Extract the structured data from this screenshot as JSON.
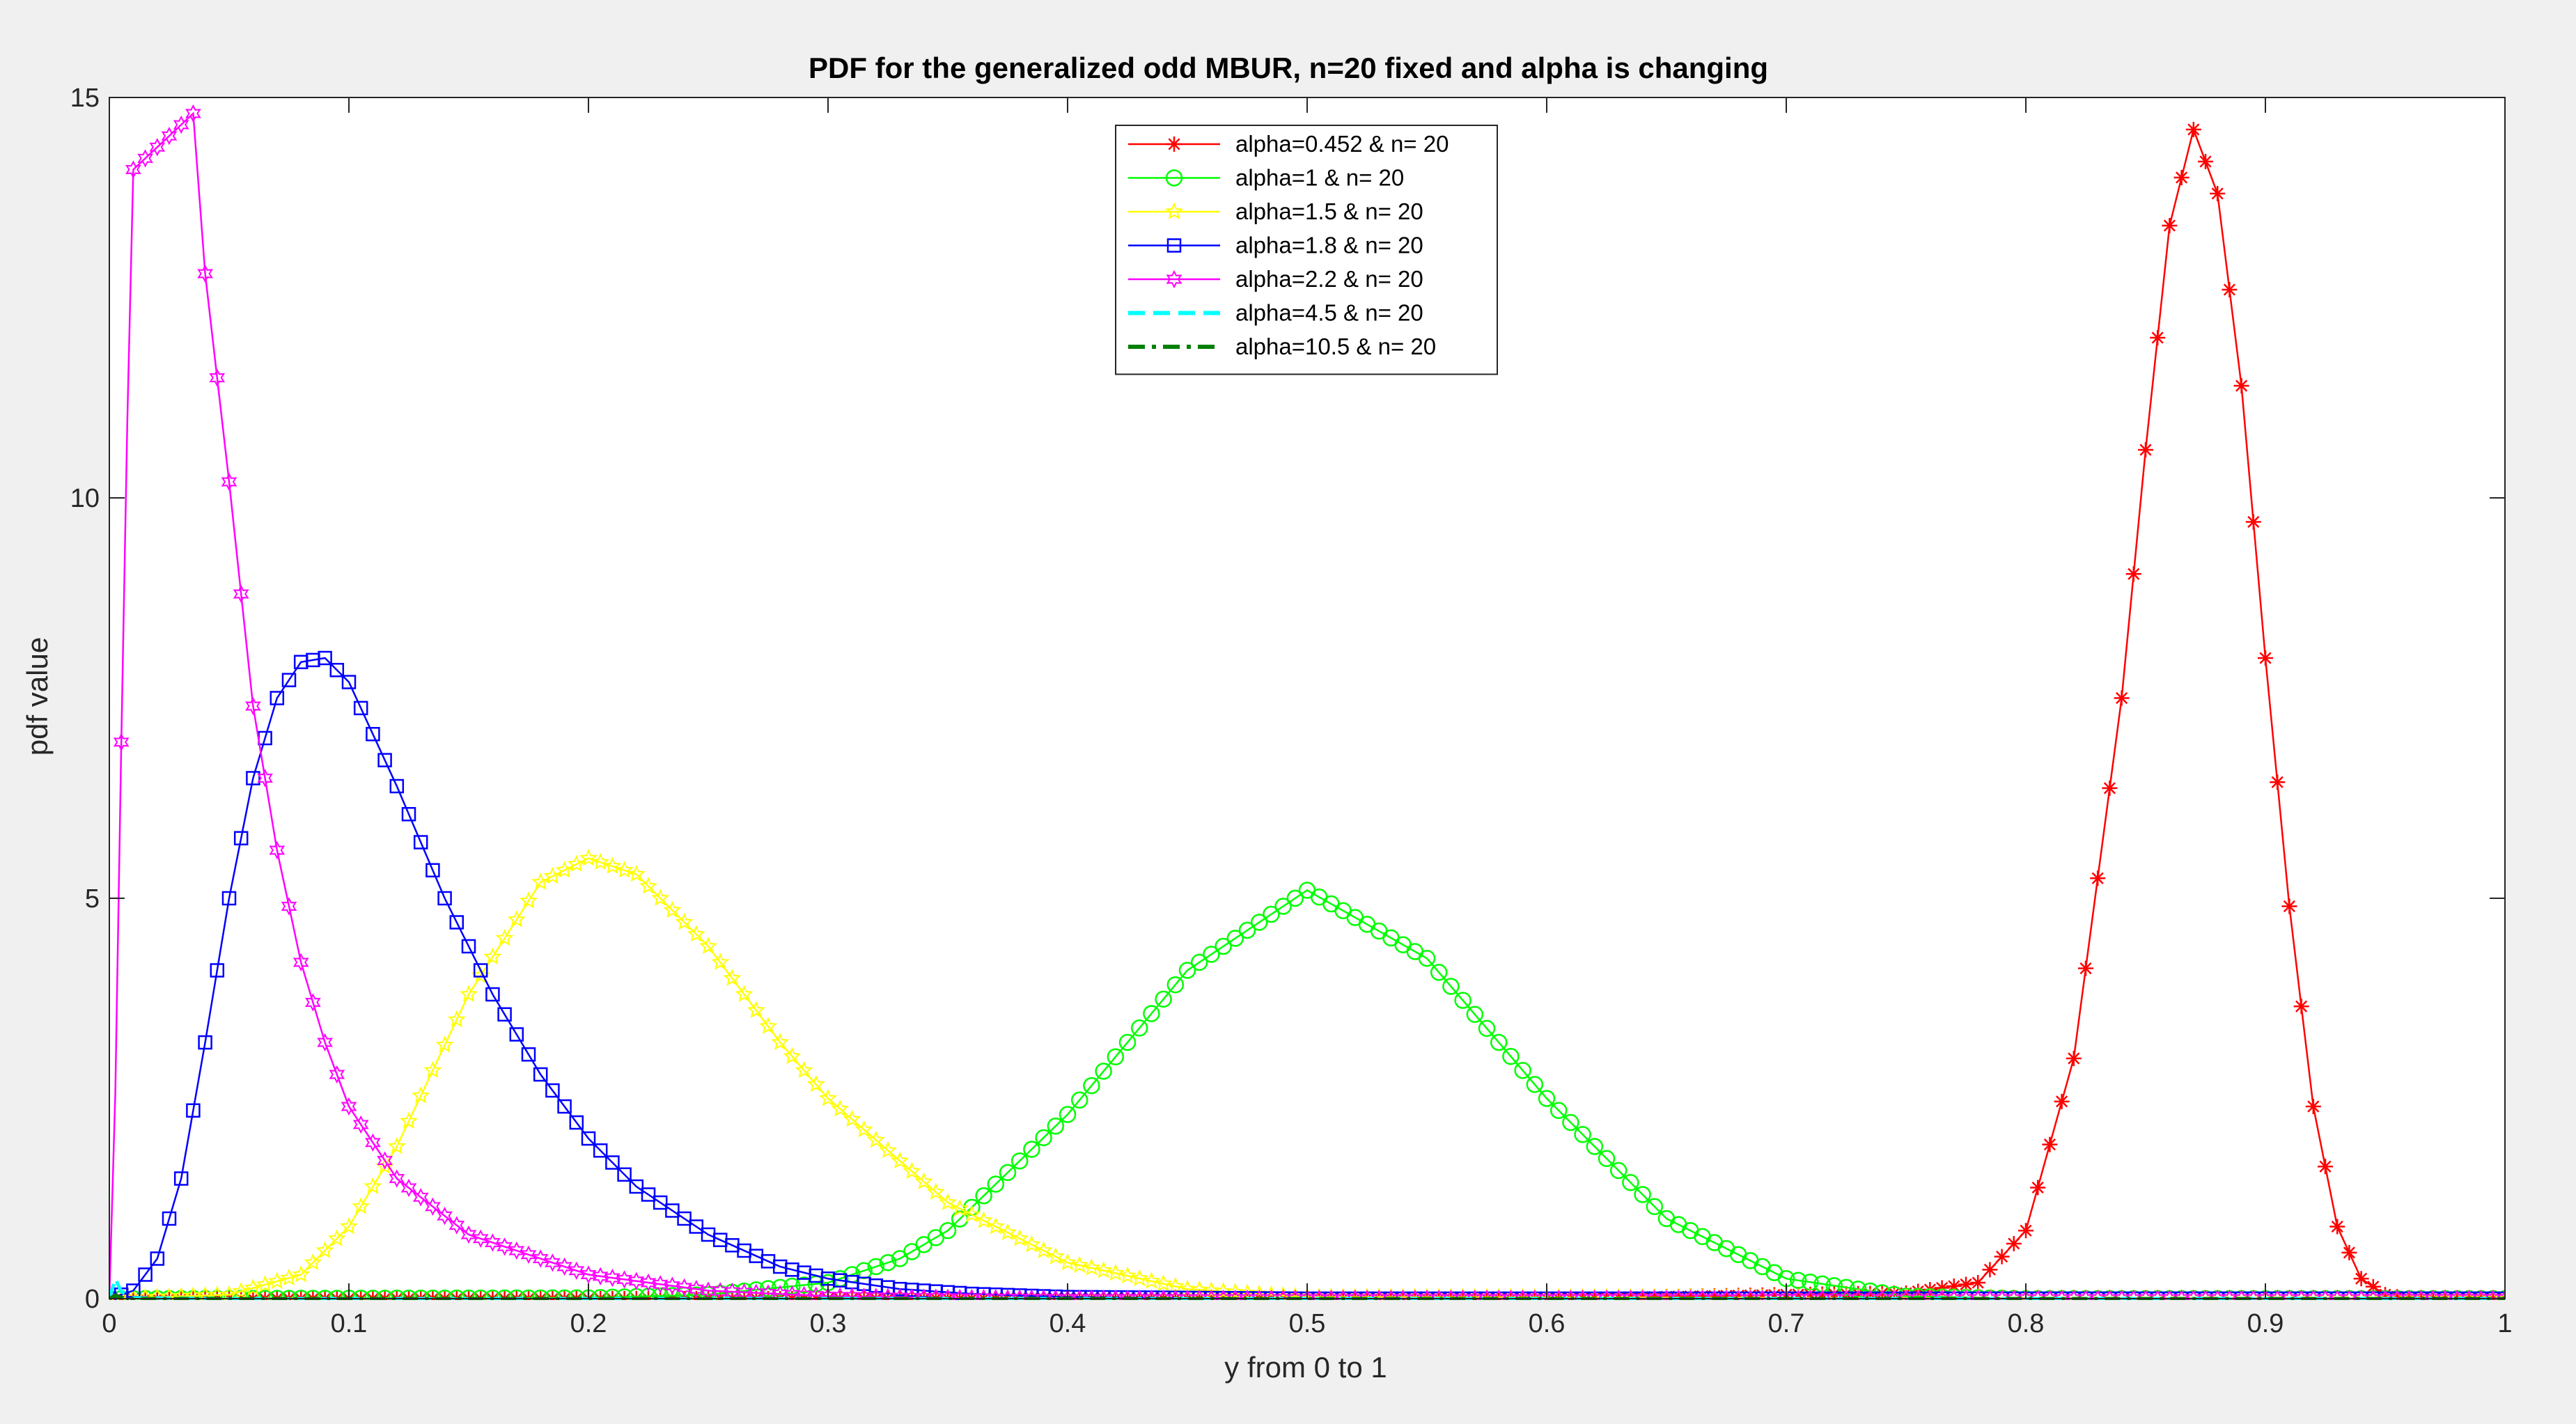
{
  "chart_data": {
    "type": "line",
    "title": "PDF for the generalized odd MBUR, n=20 fixed and alpha is changing",
    "xlabel": "y from 0 to 1",
    "ylabel": "pdf value",
    "xlim": [
      0,
      1
    ],
    "ylim": [
      0,
      15
    ],
    "xticks": [
      "0",
      "0.1",
      "0.2",
      "0.3",
      "0.4",
      "0.5",
      "0.6",
      "0.7",
      "0.8",
      "0.9",
      "1"
    ],
    "yticks": [
      "0",
      "5",
      "10",
      "15"
    ],
    "grid": false,
    "legend_position": "top-center",
    "series": [
      {
        "name": "alpha=0.452 & n= 20",
        "color": "#ff0000",
        "marker": "asterisk",
        "line_style": "solid",
        "x": [
          0,
          0.1,
          0.2,
          0.3,
          0.4,
          0.5,
          0.6,
          0.7,
          0.75,
          0.78,
          0.8,
          0.82,
          0.84,
          0.85,
          0.86,
          0.87,
          0.88,
          0.89,
          0.9,
          0.91,
          0.92,
          0.93,
          0.94,
          0.95,
          0.96,
          1
        ],
        "y": [
          0,
          0,
          0,
          0,
          0,
          0,
          0,
          0.05,
          0.07,
          0.2,
          0.85,
          3.0,
          7.5,
          10.6,
          13.4,
          14.6,
          13.8,
          11.4,
          8.0,
          4.9,
          2.4,
          0.9,
          0.25,
          0.05,
          0,
          0
        ]
      },
      {
        "name": "alpha=1 & n= 20",
        "color": "#00ff00",
        "marker": "circle",
        "line_style": "solid",
        "x": [
          0,
          0.2,
          0.25,
          0.3,
          0.33,
          0.35,
          0.4,
          0.45,
          0.5,
          0.55,
          0.6,
          0.65,
          0.7,
          0.75,
          0.8,
          1
        ],
        "y": [
          0,
          0.01,
          0.05,
          0.2,
          0.5,
          0.85,
          2.3,
          4.1,
          5.1,
          4.25,
          2.5,
          1.0,
          0.25,
          0.03,
          0,
          0
        ]
      },
      {
        "name": "alpha=1.5 & n= 20",
        "color": "#ffff00",
        "marker": "star",
        "line_style": "solid",
        "x": [
          0,
          0.05,
          0.08,
          0.1,
          0.12,
          0.15,
          0.18,
          0.2,
          0.22,
          0.25,
          0.28,
          0.3,
          0.35,
          0.4,
          0.45,
          0.5,
          1
        ],
        "y": [
          0,
          0.05,
          0.3,
          0.9,
          1.9,
          3.8,
          5.2,
          5.5,
          5.3,
          4.4,
          3.2,
          2.5,
          1.2,
          0.45,
          0.12,
          0.02,
          0
        ]
      },
      {
        "name": "alpha=1.8 & n= 20",
        "color": "#0000ff",
        "marker": "square",
        "line_style": "solid",
        "x": [
          0,
          0.01,
          0.02,
          0.03,
          0.04,
          0.05,
          0.06,
          0.07,
          0.08,
          0.09,
          0.1,
          0.12,
          0.14,
          0.16,
          0.18,
          0.2,
          0.22,
          0.25,
          0.28,
          0.3,
          0.33,
          0.36,
          0.4,
          0.5,
          1
        ],
        "y": [
          0,
          0.1,
          0.5,
          1.5,
          3.2,
          5.0,
          6.5,
          7.5,
          7.95,
          8.0,
          7.7,
          6.4,
          5.0,
          3.8,
          2.8,
          2.0,
          1.4,
          0.8,
          0.4,
          0.25,
          0.12,
          0.06,
          0.02,
          0,
          0
        ]
      },
      {
        "name": "alpha=2.2 & n= 20",
        "color": "#ff00ff",
        "marker": "hexagram",
        "line_style": "solid",
        "x": [
          0,
          0.002,
          0.004,
          0.006,
          0.008,
          0.01,
          0.035,
          0.04,
          0.05,
          0.06,
          0.07,
          0.08,
          0.09,
          0.1,
          0.12,
          0.15,
          0.2,
          0.25,
          0.3,
          0.35,
          0.4,
          1
        ],
        "y": [
          0,
          1.7,
          5.2,
          8.7,
          11.7,
          14.1,
          14.8,
          12.8,
          10.2,
          7.4,
          5.6,
          4.2,
          3.2,
          2.4,
          1.5,
          0.8,
          0.3,
          0.1,
          0.03,
          0.01,
          0,
          0
        ]
      },
      {
        "name": "alpha=4.5 & n= 20",
        "color": "#00ffff",
        "marker": "none",
        "line_style": "dashed",
        "x": [
          0,
          0.001,
          0.002,
          0.004,
          0.01,
          0.05,
          1
        ],
        "y": [
          0,
          0.6,
          0.3,
          0.1,
          0.01,
          0,
          0
        ]
      },
      {
        "name": "alpha=10.5 & n= 20",
        "color": "#008000",
        "marker": "none",
        "line_style": "dashdot",
        "x": [
          0,
          0.0005,
          0.001,
          0.003,
          0.01,
          1
        ],
        "y": [
          0,
          0.2,
          0.1,
          0.02,
          0,
          0
        ]
      }
    ]
  }
}
